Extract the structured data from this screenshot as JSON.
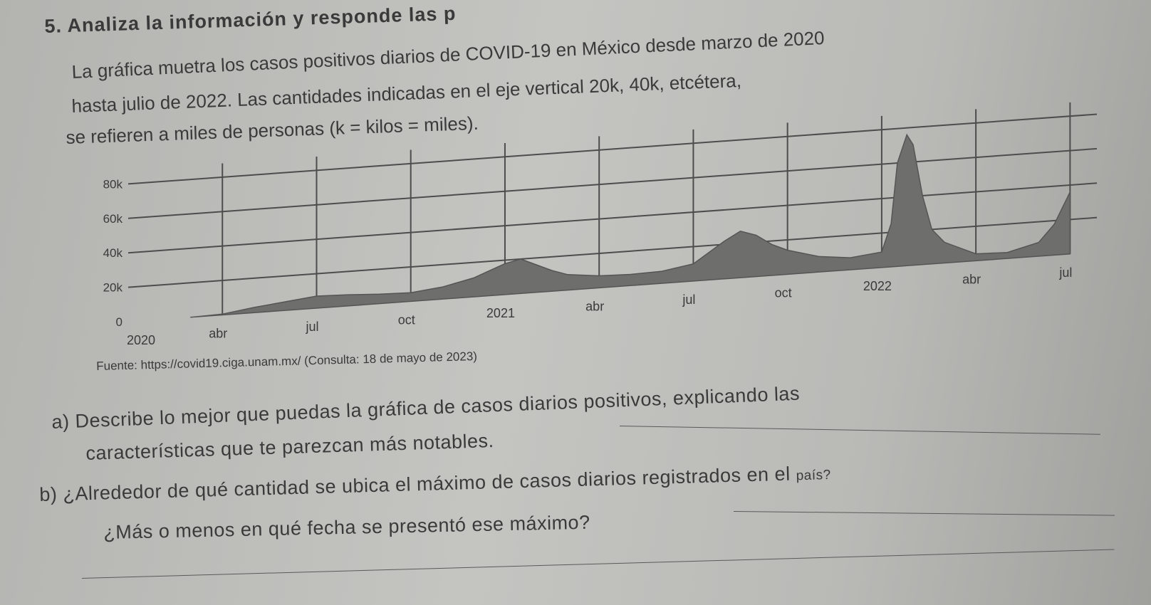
{
  "exercise": {
    "title": "5. Analiza la información y responde las p"
  },
  "intro": {
    "line1": "La gráfica muetra los casos positivos diarios de COVID-19 en México desde marzo de 2020",
    "line2": "hasta julio de 2022. Las cantidades indicadas en el eje vertical 20k, 40k, etcétera,",
    "line3": "se refieren a miles de personas (k = kilos = miles)."
  },
  "chart_data": {
    "type": "area",
    "title": "",
    "xlabel": "",
    "ylabel": "",
    "ylim": [
      0,
      90000
    ],
    "y_ticks": [
      "0",
      "20k",
      "40k",
      "60k",
      "80k"
    ],
    "y_tick_values": [
      0,
      20000,
      40000,
      60000,
      80000
    ],
    "x_ticks": [
      "2020",
      "abr",
      "jul",
      "oct",
      "2021",
      "abr",
      "jul",
      "oct",
      "2022",
      "abr",
      "jul"
    ],
    "x_tick_months": [
      0,
      3,
      6,
      9,
      12,
      15,
      18,
      21,
      24,
      27,
      30
    ],
    "grid": true,
    "series": [
      {
        "x": [
          2,
          3,
          4,
          5,
          6,
          7,
          8,
          9,
          10,
          11,
          12,
          12.5,
          13,
          13.5,
          14,
          15,
          16,
          17,
          18,
          19,
          19.5,
          20,
          20.5,
          21,
          22,
          23,
          24,
          24.3,
          24.5,
          24.8,
          25,
          25.3,
          25.6,
          26,
          27,
          28,
          29,
          29.5,
          30
        ],
        "y": [
          0,
          500,
          3000,
          5000,
          7000,
          6500,
          5500,
          5000,
          7000,
          11000,
          18000,
          20000,
          16000,
          12000,
          9000,
          7000,
          6500,
          7000,
          10000,
          22000,
          27000,
          24000,
          18000,
          14000,
          9000,
          7000,
          9000,
          25000,
          60000,
          76000,
          70000,
          40000,
          20000,
          12000,
          4000,
          3500,
          8000,
          18000,
          36000
        ]
      }
    ]
  },
  "source": "Fuente: https://covid19.ciga.unam.mx/ (Consulta: 18 de mayo de 2023)",
  "questions": {
    "a_line1": "a) Describe lo mejor que puedas la gráfica de casos diarios positivos, explicando las",
    "a_line2": "características que te parezcan más notables.",
    "b_line1": "b) ¿Alrededor de qué cantidad se ubica el máximo de casos diarios registrados en el",
    "b_line1_tail": "país?",
    "b_line2": "¿Más o menos en qué fecha se presentó ese máximo?"
  },
  "colors": {
    "ink": "#3a3a3a",
    "area_fill": "#6e6e6c",
    "grid": "#4d4d4d"
  }
}
